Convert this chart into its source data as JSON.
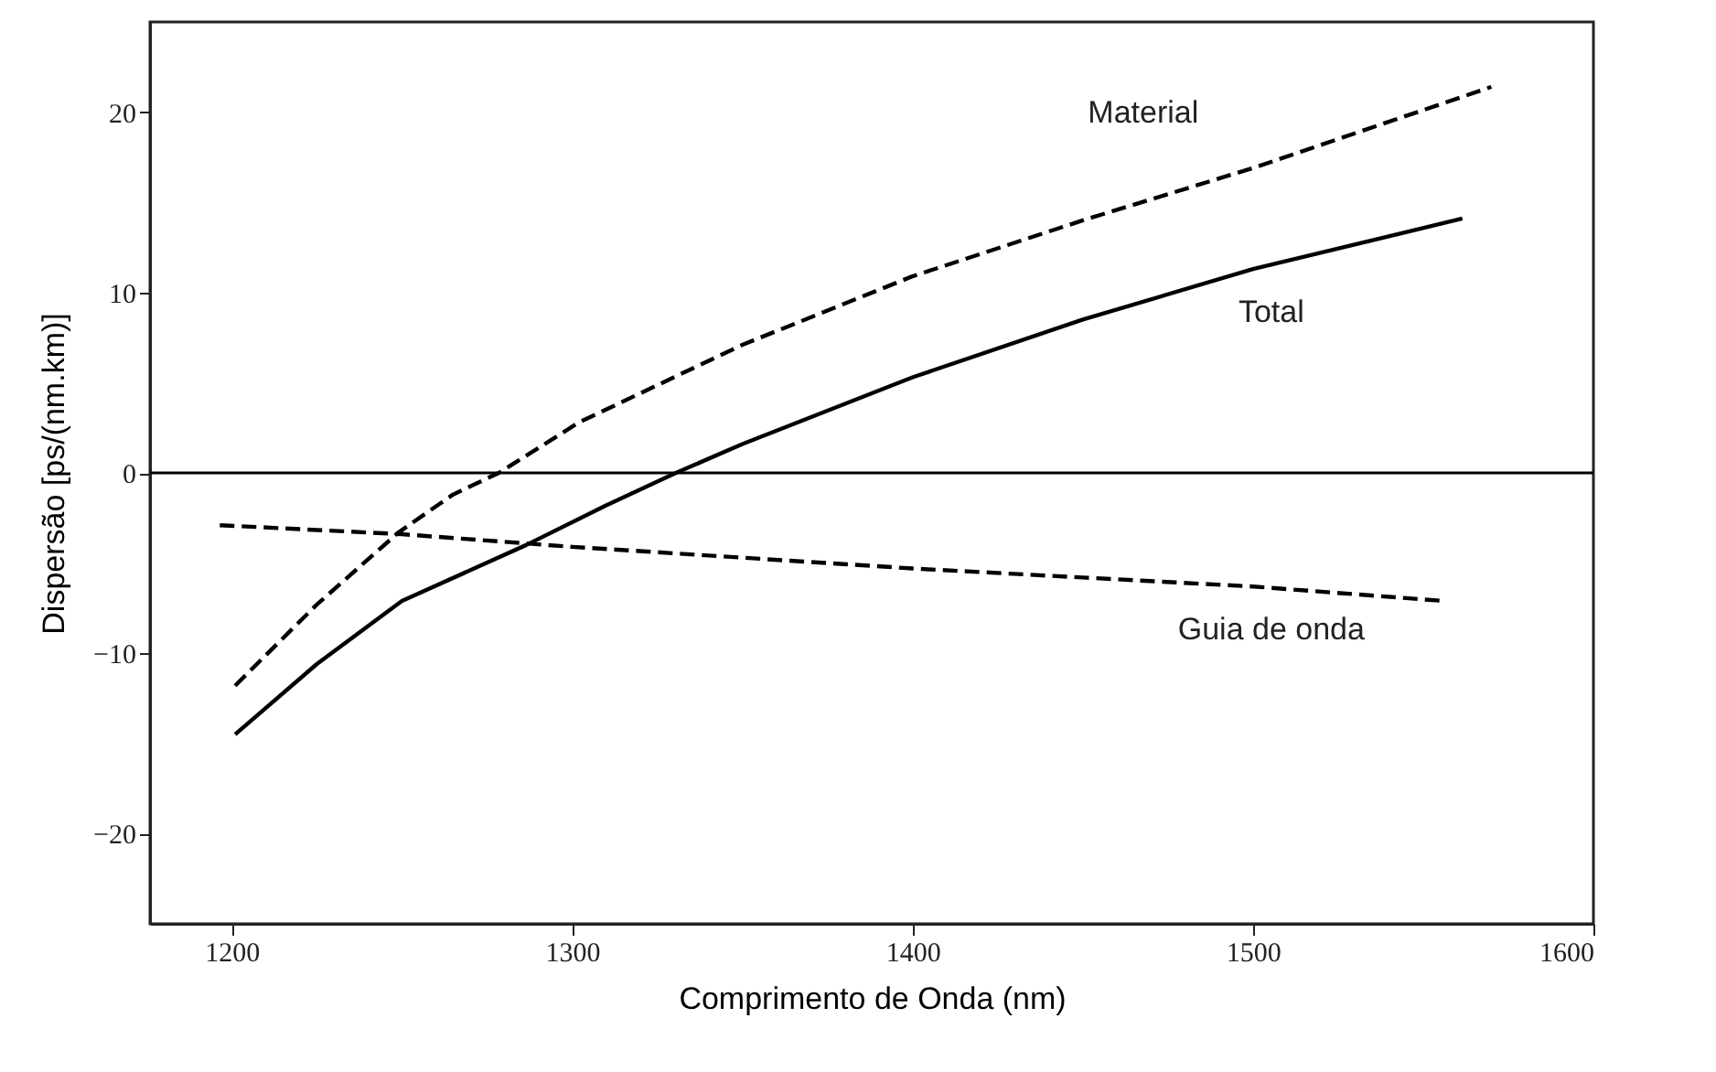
{
  "chart_data": {
    "type": "line",
    "xlabel": "Comprimento de Onda (nm)",
    "ylabel": "Dispersão [ps/(nm.km)]",
    "xlim": [
      1176,
      1600
    ],
    "ylim": [
      -25,
      25
    ],
    "xticks": [
      1200,
      1300,
      1400,
      1500,
      1600
    ],
    "yticks": [
      -20,
      -10,
      0,
      10,
      20
    ],
    "grid": false,
    "ref_lines": [
      {
        "axis": "y",
        "value": 0,
        "color": "#000000",
        "line_style": "solid"
      }
    ],
    "series": [
      {
        "name": "Material",
        "color": "#000000",
        "line_style": "dashed",
        "x": [
          1201,
          1225,
          1249,
          1265,
          1278.5,
          1302,
          1350,
          1400,
          1450,
          1500,
          1570
        ],
        "values": [
          -11.8,
          -7.3,
          -3.3,
          -1.2,
          0,
          2.8,
          7.1,
          10.9,
          14.0,
          16.9,
          21.4
        ]
      },
      {
        "name": "Total",
        "color": "#000000",
        "line_style": "solid",
        "x": [
          1201,
          1225,
          1250,
          1286.5,
          1310,
          1330.5,
          1350,
          1400,
          1450,
          1500,
          1561.5
        ],
        "values": [
          -14.5,
          -10.6,
          -7.1,
          -4.0,
          -1.8,
          0,
          1.6,
          5.3,
          8.5,
          11.3,
          14.1
        ]
      },
      {
        "name": "Guia de onda",
        "color": "#000000",
        "line_style": "dashed",
        "x": [
          1196.5,
          1250,
          1300,
          1350,
          1400,
          1450,
          1500,
          1556
        ],
        "values": [
          -2.9,
          -3.4,
          -4.1,
          -4.7,
          -5.3,
          -5.8,
          -6.3,
          -7.1
        ]
      }
    ]
  }
}
